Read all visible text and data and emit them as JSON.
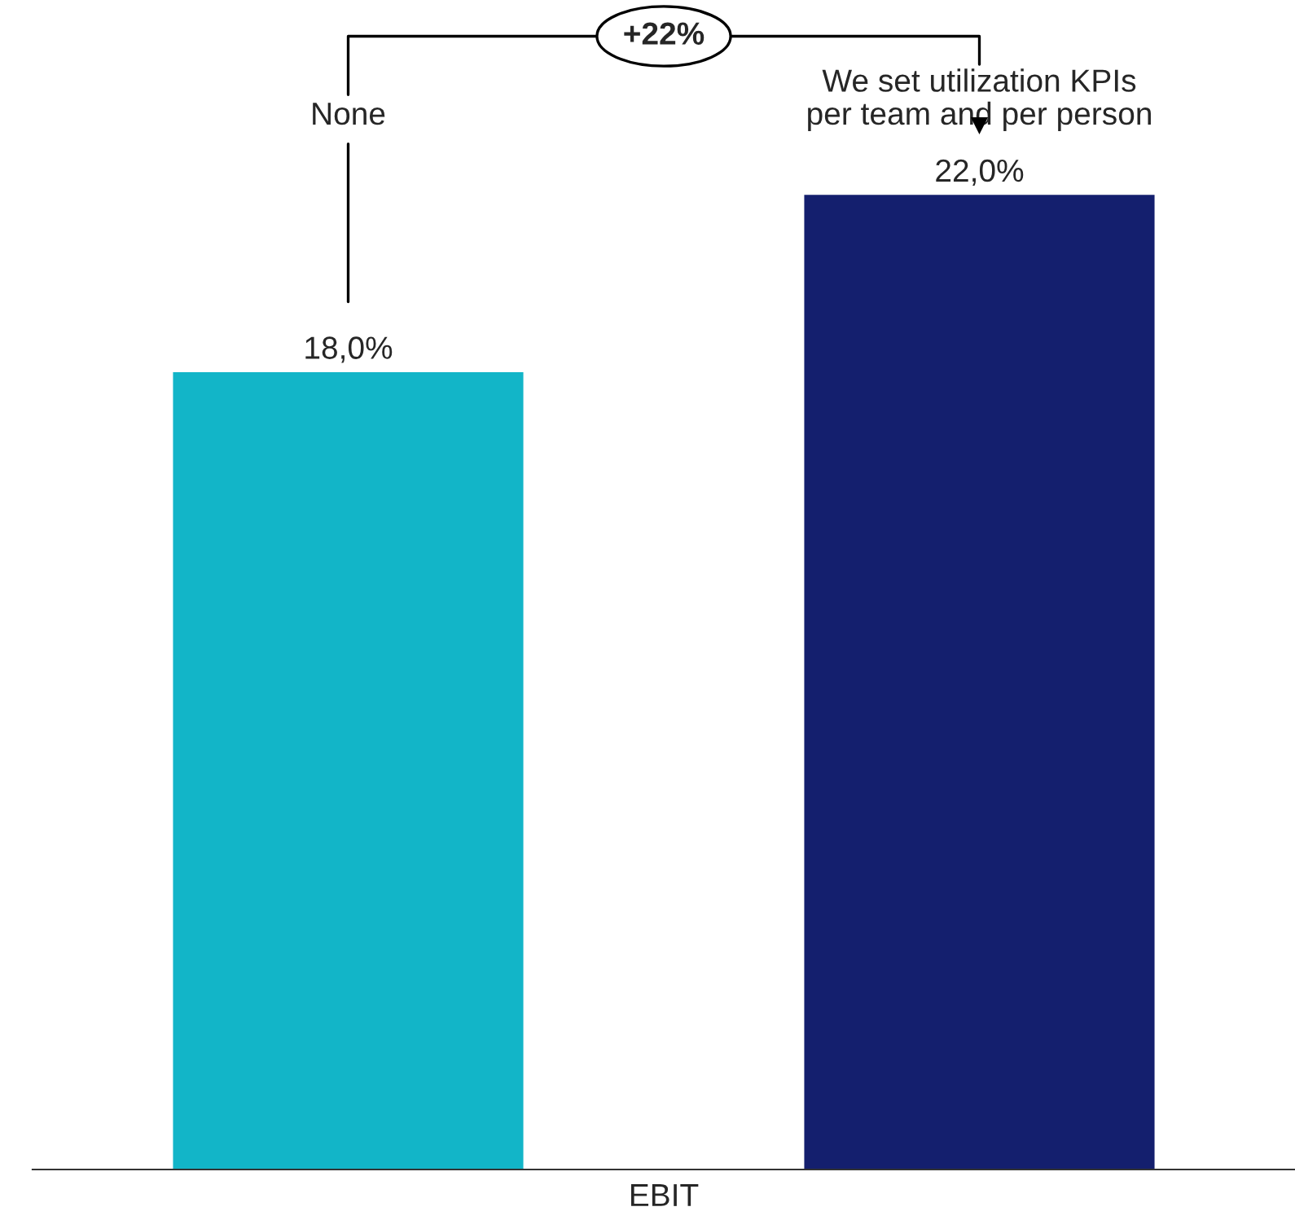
{
  "chart_data": {
    "type": "bar",
    "xlabel": "EBIT",
    "categories": [
      "None",
      "We set utilization KPIs\nper team and per person"
    ],
    "values": [
      18.0,
      22.0
    ],
    "colors": [
      "#12b5c8",
      "#141f6e"
    ],
    "value_labels": [
      "18,0%",
      "22,0%"
    ],
    "annotations": [
      "+22%"
    ]
  }
}
